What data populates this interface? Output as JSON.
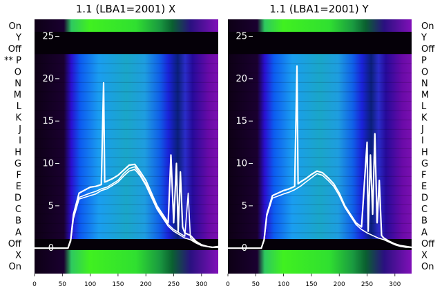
{
  "chart_data": [
    {
      "type": "heatmap",
      "title": "1.1 (LBA1=2001) X",
      "xlim": [
        0,
        330
      ],
      "x_ticks": [
        0,
        50,
        100,
        150,
        200,
        250,
        300
      ],
      "ylim": [
        -3,
        27
      ],
      "y_ticks": [
        0,
        5,
        10,
        15,
        20,
        25
      ],
      "row_labels": [
        "On",
        "Y",
        "Off",
        "** P",
        "O",
        "N",
        "M",
        "L",
        "K",
        "J",
        "I",
        "H",
        "G",
        "F",
        "E",
        "D",
        "C",
        "B",
        "A",
        "Off",
        "X",
        "On"
      ],
      "series": [
        {
          "name": "",
          "x": [
            0,
            60,
            65,
            70,
            80,
            100,
            110,
            120,
            124,
            126,
            130,
            140,
            150,
            160,
            170,
            180,
            190,
            200,
            210,
            220,
            230,
            240,
            245,
            250,
            255,
            258,
            262,
            266,
            270,
            280,
            290,
            300,
            310,
            320,
            330
          ],
          "values": [
            0,
            0,
            1,
            4,
            6.5,
            7.2,
            7.3,
            7.5,
            19.5,
            7.8,
            7.9,
            8.2,
            8.6,
            9.2,
            9.8,
            9.9,
            9.0,
            8.0,
            6.5,
            5.0,
            4.0,
            3.0,
            11,
            3.0,
            10,
            2.0,
            9,
            2.5,
            1.8,
            1.5,
            0.8,
            0.4,
            0.2,
            0.1,
            0.2
          ]
        },
        {
          "name": "",
          "x": [
            0,
            60,
            65,
            70,
            80,
            100,
            110,
            120,
            130,
            140,
            150,
            160,
            170,
            180,
            190,
            200,
            210,
            220,
            230,
            240,
            250,
            260,
            270,
            276,
            280,
            290,
            300,
            310,
            320,
            330
          ],
          "values": [
            0,
            0,
            1,
            4,
            6.0,
            6.5,
            6.7,
            7.0,
            7.2,
            7.6,
            8.0,
            8.8,
            9.4,
            9.6,
            8.7,
            7.6,
            6.2,
            4.8,
            3.8,
            2.8,
            2.2,
            1.8,
            1.4,
            6.5,
            1.2,
            0.7,
            0.3,
            0.2,
            0.1,
            0.1
          ]
        },
        {
          "name": "",
          "x": [
            0,
            60,
            65,
            70,
            80,
            100,
            110,
            120,
            130,
            140,
            150,
            160,
            170,
            180,
            190,
            200,
            210,
            220,
            230,
            240,
            250,
            260,
            270,
            280,
            290,
            300,
            310,
            320,
            330
          ],
          "values": [
            0,
            0,
            0.8,
            3.5,
            5.8,
            6.2,
            6.4,
            6.8,
            7.0,
            7.4,
            7.8,
            8.5,
            9.1,
            9.3,
            8.5,
            7.4,
            6.0,
            4.6,
            3.6,
            2.6,
            2.0,
            1.6,
            1.2,
            1.0,
            0.6,
            0.3,
            0.2,
            0.1,
            0.1
          ]
        }
      ]
    },
    {
      "type": "heatmap",
      "title": "1.1 (LBA1=2001) Y",
      "xlim": [
        0,
        330
      ],
      "x_ticks": [
        0,
        50,
        100,
        150,
        200,
        250,
        300
      ],
      "ylim": [
        -3,
        27
      ],
      "y_ticks": [
        0,
        5,
        10,
        15,
        20,
        25
      ],
      "row_labels": [
        "On",
        "Y",
        "Off",
        "P",
        "O",
        "N",
        "M",
        "L",
        "K",
        "J",
        "I",
        "H",
        "G",
        "F",
        "E",
        "D",
        "C",
        "B",
        "A",
        "Off",
        "X",
        "On"
      ],
      "series": [
        {
          "name": "",
          "x": [
            0,
            60,
            65,
            70,
            80,
            100,
            110,
            120,
            124,
            126,
            130,
            140,
            150,
            160,
            170,
            180,
            190,
            200,
            210,
            220,
            230,
            240,
            250,
            252,
            256,
            260,
            264,
            268,
            272,
            276,
            280,
            290,
            300,
            310,
            320,
            330
          ],
          "values": [
            0,
            0,
            1,
            4,
            6.2,
            6.8,
            7.0,
            7.3,
            21.5,
            7.6,
            7.8,
            8.2,
            8.7,
            9.1,
            8.9,
            8.3,
            7.6,
            6.5,
            5.0,
            4.0,
            3.0,
            2.5,
            12.5,
            2.0,
            11,
            4,
            13.5,
            3,
            8,
            1.5,
            1.2,
            0.8,
            0.5,
            0.3,
            0.2,
            0.1
          ]
        },
        {
          "name": "",
          "x": [
            0,
            60,
            65,
            70,
            80,
            100,
            110,
            120,
            130,
            140,
            150,
            160,
            170,
            180,
            190,
            200,
            210,
            220,
            230,
            240,
            250,
            260,
            270,
            280,
            290,
            300,
            310,
            320,
            330
          ],
          "values": [
            0,
            0,
            0.9,
            3.8,
            5.9,
            6.4,
            6.6,
            6.9,
            7.3,
            7.8,
            8.3,
            8.8,
            8.6,
            8.0,
            7.3,
            6.2,
            4.8,
            3.8,
            2.8,
            2.2,
            1.8,
            1.5,
            1.2,
            1.0,
            0.7,
            0.4,
            0.2,
            0.1,
            0.1
          ]
        }
      ]
    }
  ]
}
